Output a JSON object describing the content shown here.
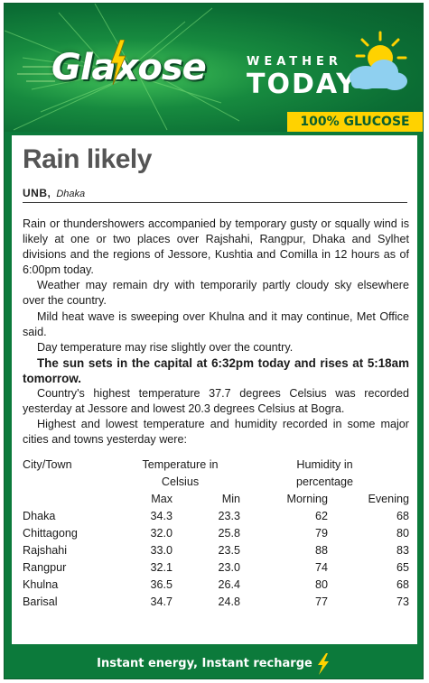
{
  "banner": {
    "brand": "Glaxose",
    "weather_label": "WEATHER",
    "today_label": "TODAY",
    "glucose_tag": "100% GLUCOSE"
  },
  "article": {
    "headline": "Rain likely",
    "agency": "UNB,",
    "place": "Dhaka",
    "paragraphs": [
      "Rain or thundershowers accompanied by temporary gusty or squally wind is likely at one or two places over Rajshahi, Rangpur, Dhaka and Sylhet divisions and the regions of Jessore, Kushtia and Comilla in 12 hours as of 6:00pm today.",
      "Weather may remain dry with temporarily partly cloudy sky elsewhere over the country.",
      "Mild heat wave is sweeping over Khulna and it may continue, Met Office said.",
      "Day temperature may rise slightly over the country.",
      "The sun sets in the capital at 6:32pm today and rises at 5:18am tomorrow.",
      "Country's highest temperature 37.7 degrees Celsius was recorded yesterday at Jessore and lowest 20.3 degrees Celsius at Bogra.",
      "Highest and lowest temperature and humidity recorded in some major cities and towns yesterday were:"
    ]
  },
  "table": {
    "city_header": "City/Town",
    "temp_header_1": "Temperature in",
    "temp_header_2": "Celsius",
    "hum_header_1": "Humidity in",
    "hum_header_2": "percentage",
    "sub_max": "Max",
    "sub_min": "Min",
    "sub_morning": "Morning",
    "sub_evening": "Evening",
    "rows": [
      {
        "city": "Dhaka",
        "max": "34.3",
        "min": "23.3",
        "morning": "62",
        "evening": "68"
      },
      {
        "city": "Chittagong",
        "max": "32.0",
        "min": "25.8",
        "morning": "79",
        "evening": "80"
      },
      {
        "city": "Rajshahi",
        "max": "33.0",
        "min": "23.5",
        "morning": "88",
        "evening": "83"
      },
      {
        "city": "Rangpur",
        "max": "32.1",
        "min": "23.0",
        "morning": "74",
        "evening": "65"
      },
      {
        "city": "Khulna",
        "max": "36.5",
        "min": "26.4",
        "morning": "80",
        "evening": "68"
      },
      {
        "city": "Barisal",
        "max": "34.7",
        "min": "24.8",
        "morning": "77",
        "evening": "73"
      }
    ]
  },
  "footer": {
    "tagline": "Instant energy, Instant recharge"
  },
  "icons": {
    "sun_cloud": "sun-cloud-icon",
    "bolt": "lightning-bolt-icon"
  },
  "colors": {
    "brand_green": "#0c7a3b",
    "glucose_yellow": "#ffd200",
    "headline_gray": "#555555"
  }
}
